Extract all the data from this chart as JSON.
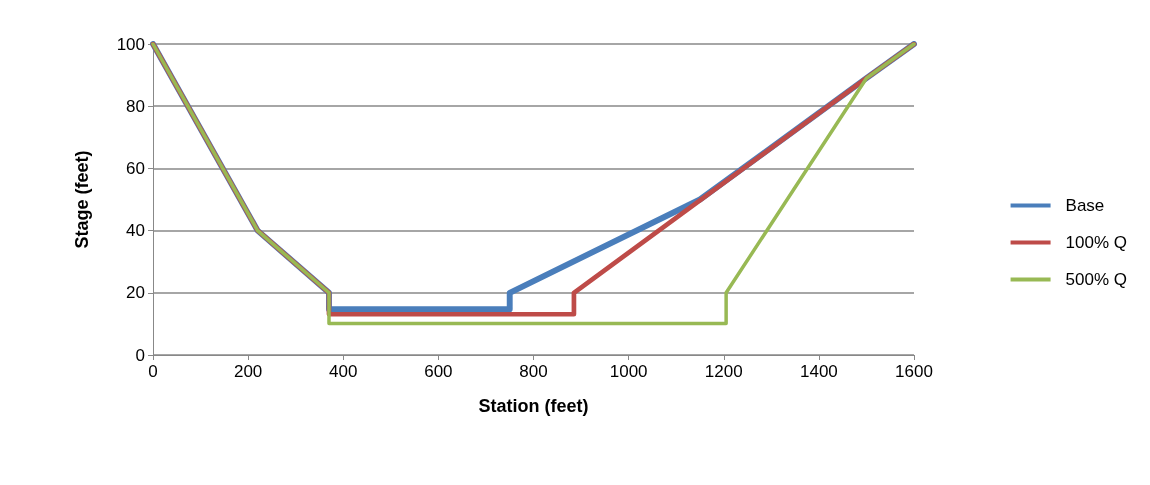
{
  "chart_data": {
    "type": "line",
    "xlabel": "Station (feet)",
    "ylabel": "Stage (feet)",
    "xlim": [
      0,
      1600
    ],
    "xticks": [
      0,
      200,
      400,
      600,
      800,
      1000,
      1200,
      1400,
      1600
    ],
    "ylim": [
      0,
      100
    ],
    "yticks": [
      0,
      20,
      40,
      60,
      80,
      100
    ],
    "grid": "y",
    "legend": "right",
    "marker": "none",
    "line_style": "solid",
    "series": [
      {
        "name": "Base",
        "color": "#4a7ebb",
        "x": [
          0,
          220,
          370,
          370,
          750,
          750,
          1150,
          1500,
          1600
        ],
        "values": [
          100,
          40,
          20,
          14.7,
          14.7,
          20,
          50,
          89,
          100
        ]
      },
      {
        "name": "100% Q",
        "color": "#be4b48",
        "x": [
          0,
          220,
          370,
          370,
          885,
          885,
          1500,
          1600
        ],
        "values": [
          100,
          40,
          20,
          13.1,
          13.1,
          20,
          89,
          100
        ]
      },
      {
        "name": "500% Q",
        "color": "#98b954",
        "x": [
          0,
          220,
          370,
          370,
          1205,
          1205,
          1500,
          1600
        ],
        "values": [
          100,
          40,
          20,
          10.1,
          10.1,
          20,
          89,
          100
        ]
      }
    ]
  }
}
